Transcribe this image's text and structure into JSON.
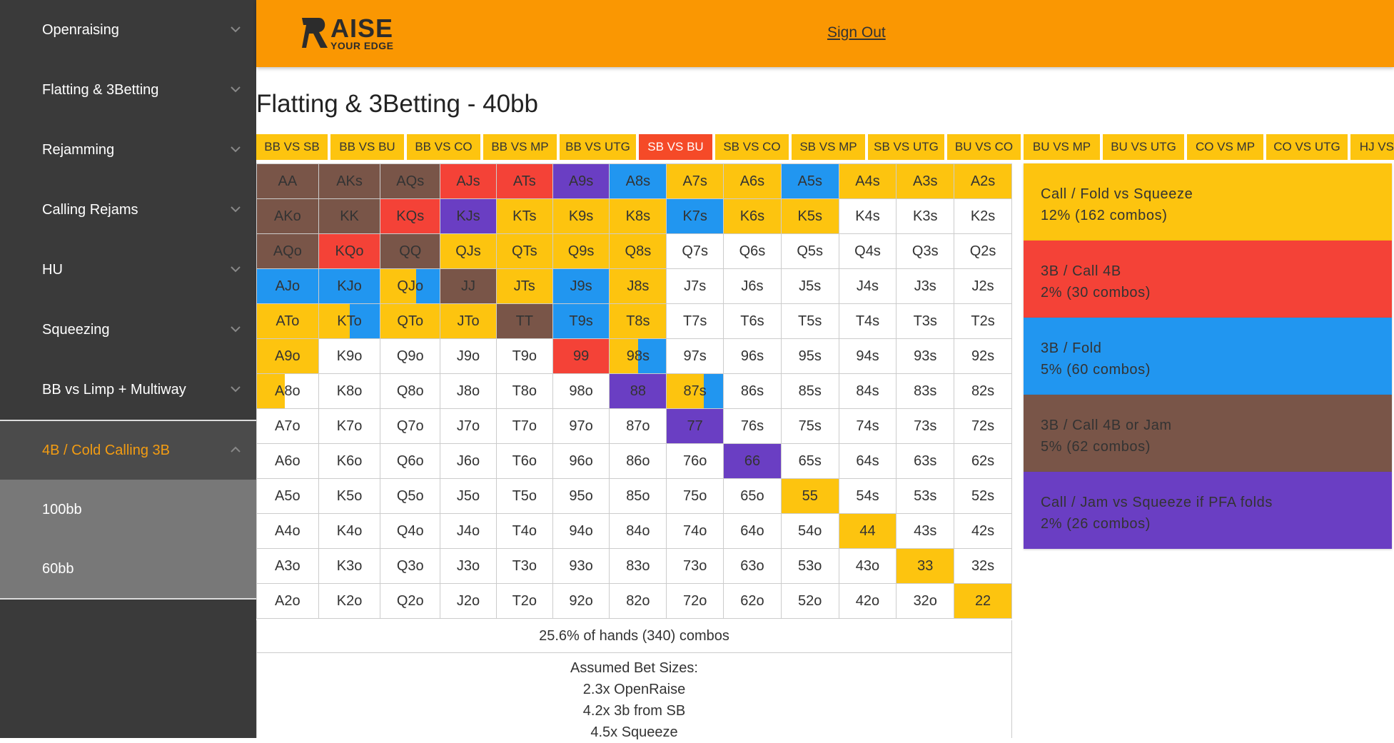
{
  "sidebar": {
    "items": [
      {
        "label": "Openraising",
        "active": false
      },
      {
        "label": "Flatting & 3Betting",
        "active": false
      },
      {
        "label": "Rejamming",
        "active": false
      },
      {
        "label": "Calling Rejams",
        "active": false
      },
      {
        "label": "HU",
        "active": false
      },
      {
        "label": "Squeezing",
        "active": false
      },
      {
        "label": "BB vs Limp + Multiway",
        "active": false
      },
      {
        "label": "4B / Cold Calling 3B",
        "active": true
      }
    ],
    "subitems": [
      {
        "label": "100bb"
      },
      {
        "label": "60bb"
      }
    ]
  },
  "header": {
    "logo_main": "AISE",
    "logo_sub": "YOUR EDGE",
    "signout": "Sign Out"
  },
  "page": {
    "title": "Flatting & 3Betting - 40bb"
  },
  "tabs": [
    {
      "label": "BB VS SB",
      "active": false
    },
    {
      "label": "BB VS BU",
      "active": false
    },
    {
      "label": "BB VS CO",
      "active": false
    },
    {
      "label": "BB VS MP",
      "active": false
    },
    {
      "label": "BB VS UTG",
      "active": false
    },
    {
      "label": "SB VS BU",
      "active": true
    },
    {
      "label": "SB VS CO",
      "active": false
    },
    {
      "label": "SB VS MP",
      "active": false
    },
    {
      "label": "SB VS UTG",
      "active": false
    },
    {
      "label": "BU VS CO",
      "active": false
    },
    {
      "label": "BU VS MP",
      "active": false
    },
    {
      "label": "BU VS UTG",
      "active": false
    },
    {
      "label": "CO VS MP",
      "active": false
    },
    {
      "label": "CO VS UTG",
      "active": false
    },
    {
      "label": "HJ VS MP",
      "active": false
    }
  ],
  "colors": {
    "yellow": "#fdc40f",
    "red": "#f44237",
    "blue": "#2196f0",
    "brown": "#795548",
    "purple": "#6a3ec3",
    "white": "#ffffff"
  },
  "grid": [
    [
      [
        "AA",
        "brown"
      ],
      [
        "AKs",
        "brown"
      ],
      [
        "AQs",
        "brown"
      ],
      [
        "AJs",
        "red"
      ],
      [
        "ATs",
        "red"
      ],
      [
        "A9s",
        "purple"
      ],
      [
        "A8s",
        "blue"
      ],
      [
        "A7s",
        "yellow"
      ],
      [
        "A6s",
        "yellow"
      ],
      [
        "A5s",
        "blue"
      ],
      [
        "A4s",
        "yellow"
      ],
      [
        "A3s",
        "yellow"
      ],
      [
        "A2s",
        "yellow"
      ]
    ],
    [
      [
        "AKo",
        "brown"
      ],
      [
        "KK",
        "brown"
      ],
      [
        "KQs",
        "red"
      ],
      [
        "KJs",
        "purple"
      ],
      [
        "KTs",
        "yellow"
      ],
      [
        "K9s",
        "yellow"
      ],
      [
        "K8s",
        "yellow"
      ],
      [
        "K7s",
        "blue"
      ],
      [
        "K6s",
        "yellow"
      ],
      [
        "K5s",
        "yellow"
      ],
      [
        "K4s",
        "white"
      ],
      [
        "K3s",
        "white"
      ],
      [
        "K2s",
        "white"
      ]
    ],
    [
      [
        "AQo",
        "brown"
      ],
      [
        "KQo",
        "red"
      ],
      [
        "QQ",
        "brown"
      ],
      [
        "QJs",
        "yellow"
      ],
      [
        "QTs",
        "yellow"
      ],
      [
        "Q9s",
        "yellow"
      ],
      [
        "Q8s",
        "yellow"
      ],
      [
        "Q7s",
        "white"
      ],
      [
        "Q6s",
        "white"
      ],
      [
        "Q5s",
        "white"
      ],
      [
        "Q4s",
        "white"
      ],
      [
        "Q3s",
        "white"
      ],
      [
        "Q2s",
        "white"
      ]
    ],
    [
      [
        "AJo",
        "blue"
      ],
      [
        "KJo",
        "blue"
      ],
      [
        "QJo",
        "yellow",
        "blue",
        0.4
      ],
      [
        "JJ",
        "brown"
      ],
      [
        "JTs",
        "yellow"
      ],
      [
        "J9s",
        "blue"
      ],
      [
        "J8s",
        "yellow"
      ],
      [
        "J7s",
        "white"
      ],
      [
        "J6s",
        "white"
      ],
      [
        "J5s",
        "white"
      ],
      [
        "J4s",
        "white"
      ],
      [
        "J3s",
        "white"
      ],
      [
        "J2s",
        "white"
      ]
    ],
    [
      [
        "ATo",
        "yellow"
      ],
      [
        "KTo",
        "yellow",
        "blue",
        0.5
      ],
      [
        "QTo",
        "yellow"
      ],
      [
        "JTo",
        "yellow"
      ],
      [
        "TT",
        "brown"
      ],
      [
        "T9s",
        "blue"
      ],
      [
        "T8s",
        "yellow"
      ],
      [
        "T7s",
        "white"
      ],
      [
        "T6s",
        "white"
      ],
      [
        "T5s",
        "white"
      ],
      [
        "T4s",
        "white"
      ],
      [
        "T3s",
        "white"
      ],
      [
        "T2s",
        "white"
      ]
    ],
    [
      [
        "A9o",
        "yellow"
      ],
      [
        "K9o",
        "white"
      ],
      [
        "Q9o",
        "white"
      ],
      [
        "J9o",
        "white"
      ],
      [
        "T9o",
        "white"
      ],
      [
        "99",
        "red"
      ],
      [
        "98s",
        "yellow",
        "blue",
        0.5
      ],
      [
        "97s",
        "white"
      ],
      [
        "96s",
        "white"
      ],
      [
        "95s",
        "white"
      ],
      [
        "94s",
        "white"
      ],
      [
        "93s",
        "white"
      ],
      [
        "92s",
        "white"
      ]
    ],
    [
      [
        "A8o",
        "yellow",
        "white",
        0.55
      ],
      [
        "K8o",
        "white"
      ],
      [
        "Q8o",
        "white"
      ],
      [
        "J8o",
        "white"
      ],
      [
        "T8o",
        "white"
      ],
      [
        "98o",
        "white"
      ],
      [
        "88",
        "purple"
      ],
      [
        "87s",
        "yellow",
        "blue",
        0.35
      ],
      [
        "86s",
        "white"
      ],
      [
        "85s",
        "white"
      ],
      [
        "84s",
        "white"
      ],
      [
        "83s",
        "white"
      ],
      [
        "82s",
        "white"
      ]
    ],
    [
      [
        "A7o",
        "white"
      ],
      [
        "K7o",
        "white"
      ],
      [
        "Q7o",
        "white"
      ],
      [
        "J7o",
        "white"
      ],
      [
        "T7o",
        "white"
      ],
      [
        "97o",
        "white"
      ],
      [
        "87o",
        "white"
      ],
      [
        "77",
        "purple"
      ],
      [
        "76s",
        "white"
      ],
      [
        "75s",
        "white"
      ],
      [
        "74s",
        "white"
      ],
      [
        "73s",
        "white"
      ],
      [
        "72s",
        "white"
      ]
    ],
    [
      [
        "A6o",
        "white"
      ],
      [
        "K6o",
        "white"
      ],
      [
        "Q6o",
        "white"
      ],
      [
        "J6o",
        "white"
      ],
      [
        "T6o",
        "white"
      ],
      [
        "96o",
        "white"
      ],
      [
        "86o",
        "white"
      ],
      [
        "76o",
        "white"
      ],
      [
        "66",
        "purple"
      ],
      [
        "65s",
        "white"
      ],
      [
        "64s",
        "white"
      ],
      [
        "63s",
        "white"
      ],
      [
        "62s",
        "white"
      ]
    ],
    [
      [
        "A5o",
        "white"
      ],
      [
        "K5o",
        "white"
      ],
      [
        "Q5o",
        "white"
      ],
      [
        "J5o",
        "white"
      ],
      [
        "T5o",
        "white"
      ],
      [
        "95o",
        "white"
      ],
      [
        "85o",
        "white"
      ],
      [
        "75o",
        "white"
      ],
      [
        "65o",
        "white"
      ],
      [
        "55",
        "yellow"
      ],
      [
        "54s",
        "white"
      ],
      [
        "53s",
        "white"
      ],
      [
        "52s",
        "white"
      ]
    ],
    [
      [
        "A4o",
        "white"
      ],
      [
        "K4o",
        "white"
      ],
      [
        "Q4o",
        "white"
      ],
      [
        "J4o",
        "white"
      ],
      [
        "T4o",
        "white"
      ],
      [
        "94o",
        "white"
      ],
      [
        "84o",
        "white"
      ],
      [
        "74o",
        "white"
      ],
      [
        "64o",
        "white"
      ],
      [
        "54o",
        "white"
      ],
      [
        "44",
        "yellow"
      ],
      [
        "43s",
        "white"
      ],
      [
        "42s",
        "white"
      ]
    ],
    [
      [
        "A3o",
        "white"
      ],
      [
        "K3o",
        "white"
      ],
      [
        "Q3o",
        "white"
      ],
      [
        "J3o",
        "white"
      ],
      [
        "T3o",
        "white"
      ],
      [
        "93o",
        "white"
      ],
      [
        "83o",
        "white"
      ],
      [
        "73o",
        "white"
      ],
      [
        "63o",
        "white"
      ],
      [
        "53o",
        "white"
      ],
      [
        "43o",
        "white"
      ],
      [
        "33",
        "yellow"
      ],
      [
        "32s",
        "white"
      ]
    ],
    [
      [
        "A2o",
        "white"
      ],
      [
        "K2o",
        "white"
      ],
      [
        "Q2o",
        "white"
      ],
      [
        "J2o",
        "white"
      ],
      [
        "T2o",
        "white"
      ],
      [
        "92o",
        "white"
      ],
      [
        "82o",
        "white"
      ],
      [
        "72o",
        "white"
      ],
      [
        "62o",
        "white"
      ],
      [
        "52o",
        "white"
      ],
      [
        "42o",
        "white"
      ],
      [
        "32o",
        "white"
      ],
      [
        "22",
        "yellow"
      ]
    ]
  ],
  "summary": "25.6% of hands (340) combos",
  "bet_sizes": {
    "heading": "Assumed Bet Sizes:",
    "lines": [
      "2.3x OpenRaise",
      "4.2x 3b from SB",
      "4.5x Squeeze"
    ]
  },
  "legend": [
    {
      "name": "Call / Fold vs Squeeze",
      "stat": "12% (162 combos)",
      "color": "yellow",
      "light_text": false
    },
    {
      "name": "3B / Call 4B",
      "stat": "2% (30 combos)",
      "color": "red",
      "light_text": false
    },
    {
      "name": "3B / Fold",
      "stat": "5% (60 combos)",
      "color": "blue",
      "light_text": false
    },
    {
      "name": "3B / Call 4B or Jam",
      "stat": "5% (62 combos)",
      "color": "brown",
      "light_text": false
    },
    {
      "name": "Call / Jam vs Squeeze if PFA folds",
      "stat": "2% (26 combos)",
      "color": "purple",
      "light_text": false
    }
  ]
}
